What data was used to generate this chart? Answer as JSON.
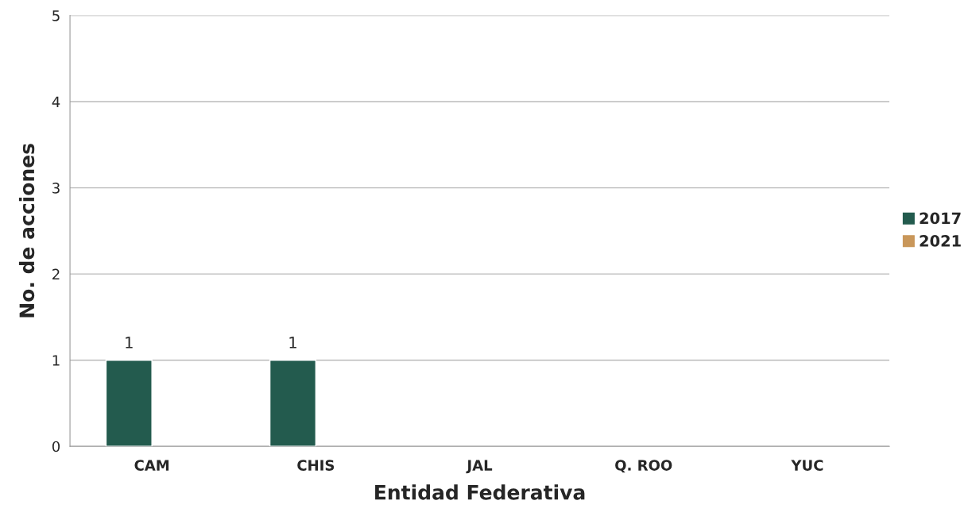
{
  "chart_data": {
    "type": "bar",
    "xlabel": "Entidad Federativa",
    "ylabel": "No. de acciones",
    "categories": [
      "CAM",
      "CHIS",
      "JAL",
      "Q. ROO",
      "YUC"
    ],
    "series": [
      {
        "name": "2017",
        "color": "#235b4e",
        "values": [
          1,
          1,
          null,
          null,
          null
        ],
        "value_labels": [
          "1",
          "1",
          null,
          null,
          null
        ]
      },
      {
        "name": "2021",
        "color": "#c9975a",
        "values": [
          null,
          null,
          null,
          null,
          null
        ]
      }
    ],
    "ylim": [
      0,
      5
    ],
    "yticks": [
      0,
      1,
      2,
      3,
      4,
      5
    ],
    "grid": "y",
    "legend": "right"
  }
}
